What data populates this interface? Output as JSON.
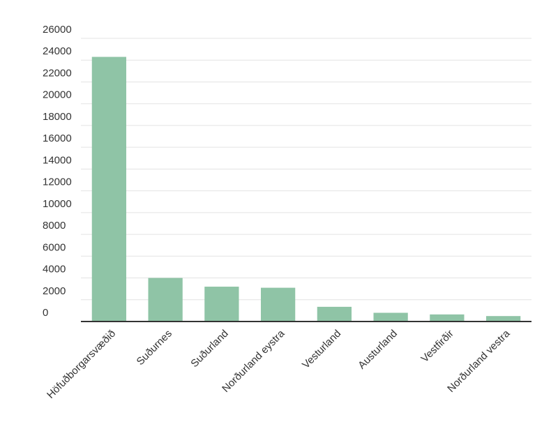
{
  "chart_data": {
    "type": "bar",
    "categories": [
      "Höfuðborgarsvæðið",
      "Suðurnes",
      "Suðurland",
      "Norðurland eystra",
      "Vesturland",
      "Austurland",
      "Vestfirðir",
      "Norðurland vestra"
    ],
    "values": [
      24300,
      4000,
      3200,
      3100,
      1350,
      800,
      650,
      500
    ],
    "title": "",
    "xlabel": "",
    "ylabel": "",
    "ylim": [
      0,
      26000
    ],
    "yticks": [
      0,
      2000,
      4000,
      6000,
      8000,
      10000,
      12000,
      14000,
      16000,
      18000,
      20000,
      22000,
      24000,
      26000
    ],
    "grid": true,
    "legend": "none",
    "bar_color": "#8fc4a6"
  }
}
